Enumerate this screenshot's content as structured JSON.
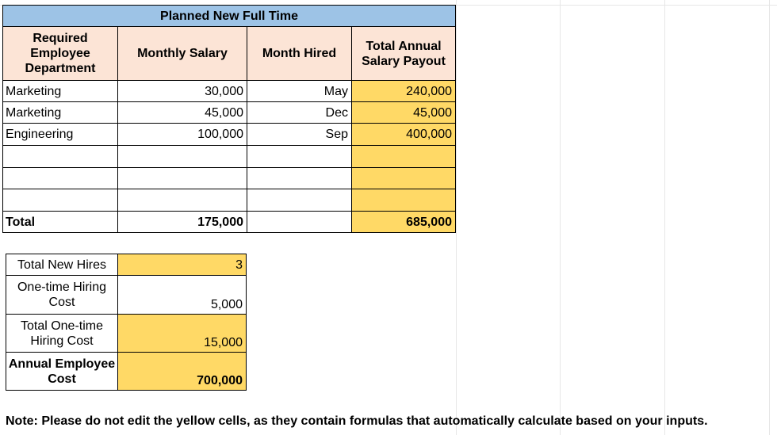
{
  "header": {
    "title": "Planned New Full Time"
  },
  "columns": {
    "department": "Required Employee Department",
    "monthly_salary": "Monthly Salary",
    "month_hired": "Month Hired",
    "total_payout": "Total Annual Salary Payout"
  },
  "rows": [
    {
      "department": "Marketing",
      "monthly_salary": "30,000",
      "month_hired": "May",
      "total_payout": "240,000"
    },
    {
      "department": "Marketing",
      "monthly_salary": "45,000",
      "month_hired": "Dec",
      "total_payout": "45,000"
    },
    {
      "department": "Engineering",
      "monthly_salary": "100,000",
      "month_hired": "Sep",
      "total_payout": "400,000"
    },
    {
      "department": "",
      "monthly_salary": "",
      "month_hired": "",
      "total_payout": ""
    },
    {
      "department": "",
      "monthly_salary": "",
      "month_hired": "",
      "total_payout": ""
    },
    {
      "department": "",
      "monthly_salary": "",
      "month_hired": "",
      "total_payout": ""
    }
  ],
  "totals": {
    "label": "Total",
    "monthly_salary": "175,000",
    "month_hired": "",
    "total_payout": "685,000"
  },
  "summary": {
    "total_new_hires_label": "Total New Hires",
    "total_new_hires_value": "3",
    "one_time_cost_label": "One-time Hiring Cost",
    "one_time_cost_value": "5,000",
    "total_one_time_label": "Total One-time Hiring Cost",
    "total_one_time_value": "15,000",
    "annual_cost_label": "Annual Employee Cost",
    "annual_cost_value": "700,000"
  },
  "note": "Note: Please do not edit the yellow cells, as they contain formulas that automatically calculate based on your inputs.",
  "colors": {
    "header_blue": "#9dc3e6",
    "peach": "#fce4d6",
    "yellow": "#ffd966"
  }
}
